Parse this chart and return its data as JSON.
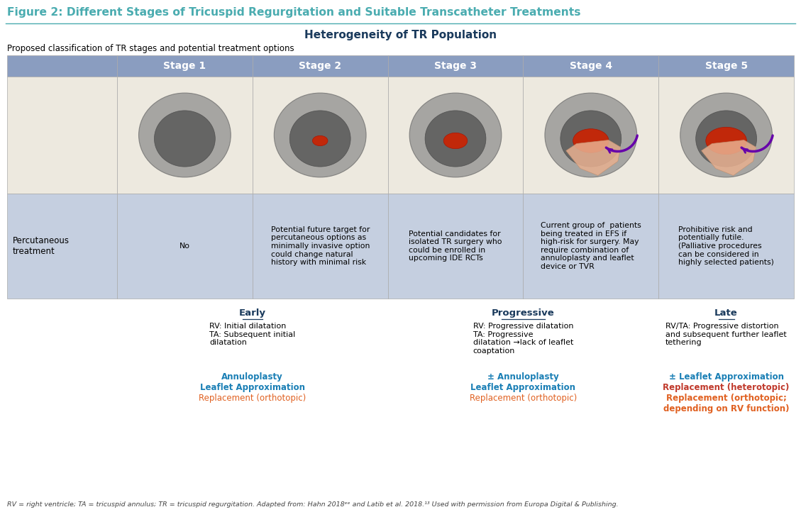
{
  "figure_title": "Figure 2: Different Stages of Tricuspid Regurgitation and Suitable Transcatheter Treatments",
  "figure_title_color": "#4AACB0",
  "main_title": "Heterogeneity of TR Population",
  "main_title_color": "#1a3a5c",
  "subtitle": "Proposed classification of TR stages and potential treatment options",
  "stages": [
    "Stage 1",
    "Stage 2",
    "Stage 3",
    "Stage 4",
    "Stage 5"
  ],
  "header_bg": "#8A9DC0",
  "header_text_color": "#ffffff",
  "cell_bg_light": "#ede9df",
  "cell_bg_blue": "#c5cfe0",
  "perc_label": "Percutaneous\ntreatment",
  "perc_values": [
    "No",
    "Potential future target for\npercutaneous options as\nminimally invasive option\ncould change natural\nhistory with minimal risk",
    "Potential candidates for\nisolated TR surgery who\ncould be enrolled in\nupcoming IDE RCTs",
    "Current group of  patients\nbeing treated in EFS if\nhigh-risk for surgery. May\nrequire combination of\nannuloplasty and leaflet\ndevice or TVR",
    "Prohibitive risk and\npotentially futile.\n(Palliative procedures\ncan be considered in\nhighly selected patients)"
  ],
  "early_title": "Early",
  "progressive_title": "Progressive",
  "late_title": "Late",
  "early_desc": "RV: Initial dilatation\nTA: Subsequent initial\ndilatation",
  "progressive_desc": "RV: Progressive dilatation\nTA: Progressive\ndilatation →lack of leaflet\ncoaptation",
  "late_desc": "RV/TA: Progressive distortion\nand subsequent further leaflet\ntethering",
  "early_treatments": [
    {
      "text": "Annuloplasty",
      "color": "#1a7fb5",
      "bold": true
    },
    {
      "text": "Leaflet Approximation",
      "color": "#1a7fb5",
      "bold": true
    },
    {
      "text": "Replacement (orthotopic)",
      "color": "#e06020",
      "bold": false
    }
  ],
  "progressive_treatments": [
    {
      "text": "± Annuloplasty",
      "color": "#1a7fb5",
      "bold": true
    },
    {
      "text": "Leaflet Approximation",
      "color": "#1a7fb5",
      "bold": true
    },
    {
      "text": "Replacement (orthotopic)",
      "color": "#e06020",
      "bold": false
    }
  ],
  "late_treatments": [
    {
      "text": "± Leaflet Approximation",
      "color": "#1a7fb5",
      "bold": true
    },
    {
      "text": "Replacement (heterotopic)",
      "color": "#c0392b",
      "bold": true
    },
    {
      "text": "Replacement (orthotopic;\ndepending on RV function)",
      "color": "#e06020",
      "bold": true
    }
  ],
  "footnote": "RV = right ventricle; TA = tricuspid annulus; TR = tricuspid regurgitation. Adapted from: Hahn 2018ᵉᵉ and Latib et al. 2018.¹³ Used with permission from Europa Digital & Publishing.",
  "border_color": "#aaaaaa",
  "phase_label_color": "#1a3a5c",
  "bg_color": "#ffffff"
}
